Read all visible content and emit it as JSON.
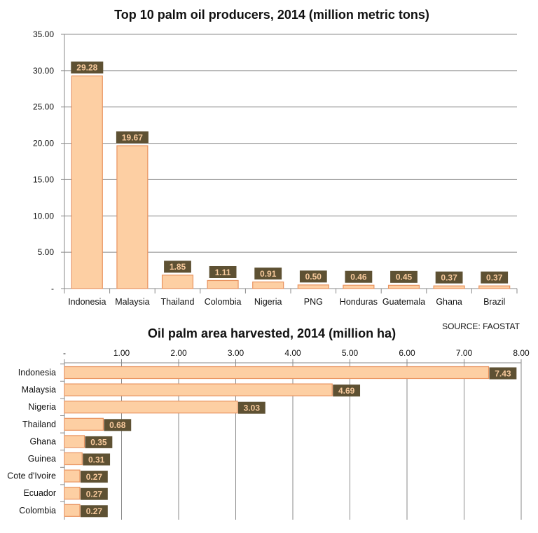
{
  "source": "SOURCE: FAOSTAT",
  "colors": {
    "bar_fill": "#fdcfa3",
    "bar_stroke": "#e9935f",
    "label_bg": "#5e5133",
    "label_text": "#f7c99c",
    "grid": "#8a8a8a"
  },
  "chart_data": [
    {
      "type": "bar",
      "orientation": "vertical",
      "title": "Top 10 palm oil producers, 2014 (million metric tons)",
      "categories": [
        "Indonesia",
        "Malaysia",
        "Thailand",
        "Colombia",
        "Nigeria",
        "PNG",
        "Honduras",
        "Guatemala",
        "Ghana",
        "Brazil"
      ],
      "values": [
        29.28,
        19.67,
        1.85,
        1.11,
        0.91,
        0.5,
        0.46,
        0.45,
        0.37,
        0.37
      ],
      "data_labels": [
        "29.28",
        "19.67",
        "1.85",
        "1.11",
        "0.91",
        "0.50",
        "0.46",
        "0.45",
        "0.37",
        "0.37"
      ],
      "ylim": [
        0,
        35
      ],
      "yticks": [
        0,
        5,
        10,
        15,
        20,
        25,
        30,
        35
      ],
      "ytick_labels": [
        "-",
        "5.00",
        "10.00",
        "15.00",
        "20.00",
        "25.00",
        "30.00",
        "35.00"
      ],
      "grid": true,
      "legend": "none"
    },
    {
      "type": "bar",
      "orientation": "horizontal",
      "title": "Oil palm area harvested, 2014 (million ha)",
      "categories": [
        "Indonesia",
        "Malaysia",
        "Nigeria",
        "Thailand",
        "Ghana",
        "Guinea",
        "Cote d'Ivoire",
        "Ecuador",
        "Colombia"
      ],
      "values": [
        7.43,
        4.69,
        3.03,
        0.68,
        0.35,
        0.31,
        0.27,
        0.27,
        0.27
      ],
      "data_labels": [
        "7.43",
        "4.69",
        "3.03",
        "0.68",
        "0.35",
        "0.31",
        "0.27",
        "0.27",
        "0.27"
      ],
      "xlim": [
        0,
        8
      ],
      "xticks": [
        0,
        1,
        2,
        3,
        4,
        5,
        6,
        7,
        8
      ],
      "xtick_labels": [
        "-",
        "1.00",
        "2.00",
        "3.00",
        "4.00",
        "5.00",
        "6.00",
        "7.00",
        "8.00"
      ],
      "grid": true,
      "legend": "none"
    }
  ]
}
